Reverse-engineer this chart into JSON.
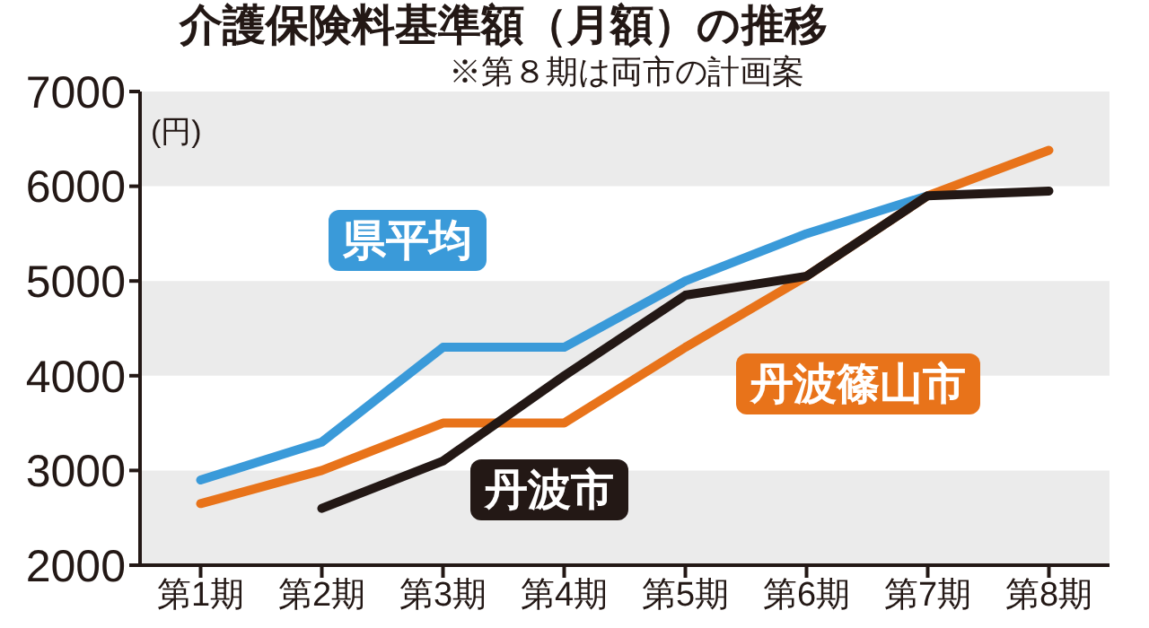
{
  "chart_data": {
    "type": "line",
    "title": "介護保険料基準額（月額）の推移",
    "subtitle": "※第８期は両市の計画案",
    "ylabel": "(円)",
    "categories": [
      "第1期",
      "第2期",
      "第3期",
      "第4期",
      "第5期",
      "第6期",
      "第7期",
      "第8期"
    ],
    "series": [
      {
        "name": "県平均",
        "color": "#3a9ad9",
        "values": [
          2900,
          3300,
          4300,
          4300,
          5000,
          5500,
          5900,
          null
        ]
      },
      {
        "name": "丹波篠山市",
        "color": "#e8731a",
        "values": [
          2650,
          3000,
          3500,
          3500,
          4300,
          5050,
          5900,
          6380
        ]
      },
      {
        "name": "丹波市",
        "color": "#231815",
        "values": [
          null,
          2600,
          3100,
          4000,
          4850,
          5050,
          5900,
          5950
        ]
      }
    ],
    "bands": [
      {
        "axis": "y",
        "from": 6000,
        "to": 7000,
        "color": "#ebebeb"
      },
      {
        "axis": "y",
        "from": 4000,
        "to": 5000,
        "color": "#ebebeb"
      },
      {
        "axis": "y",
        "from": 2000,
        "to": 3000,
        "color": "#ebebeb"
      }
    ],
    "ylim": [
      2000,
      7000
    ],
    "yticks": [
      2000,
      3000,
      4000,
      5000,
      6000,
      7000
    ],
    "marker": "none",
    "line_style": "solid"
  }
}
